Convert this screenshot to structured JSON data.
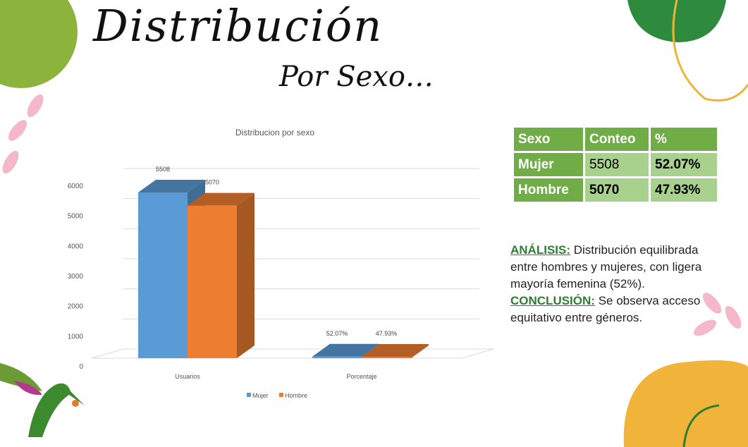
{
  "header": {
    "title": "Distribución",
    "subtitle": "Por Sexo…"
  },
  "chart_data": {
    "type": "bar3d",
    "title": "Distribucion por sexo",
    "categories": [
      "Usuarios",
      "Porcentaje"
    ],
    "series": [
      {
        "name": "Mujer",
        "color": "#5b9bd5",
        "values": [
          5508,
          52.07
        ],
        "value_labels": [
          "5508",
          "52.07%"
        ]
      },
      {
        "name": "Hombre",
        "color": "#ed7d31",
        "values": [
          5070,
          47.93
        ],
        "value_labels": [
          "5070",
          "47.93%"
        ]
      }
    ],
    "ylim": [
      0,
      6000
    ],
    "yticks": [
      0,
      1000,
      2000,
      3000,
      4000,
      5000,
      6000
    ],
    "grid": true,
    "legend": "bottom"
  },
  "table": {
    "header": [
      "Sexo",
      "Conteo",
      "%"
    ],
    "rows": [
      [
        "Mujer",
        "5508",
        "52.07%"
      ],
      [
        "Hombre",
        "5070",
        "47.93%"
      ]
    ]
  },
  "analysis": {
    "label": "ANÁLISIS:",
    "text": "Distribución equilibrada entre hombres y mujeres, con ligera mayoría femenina (52%)."
  },
  "conclusion": {
    "label": "CONCLUSIÓN:",
    "text": "Se observa acceso equitativo entre géneros."
  }
}
